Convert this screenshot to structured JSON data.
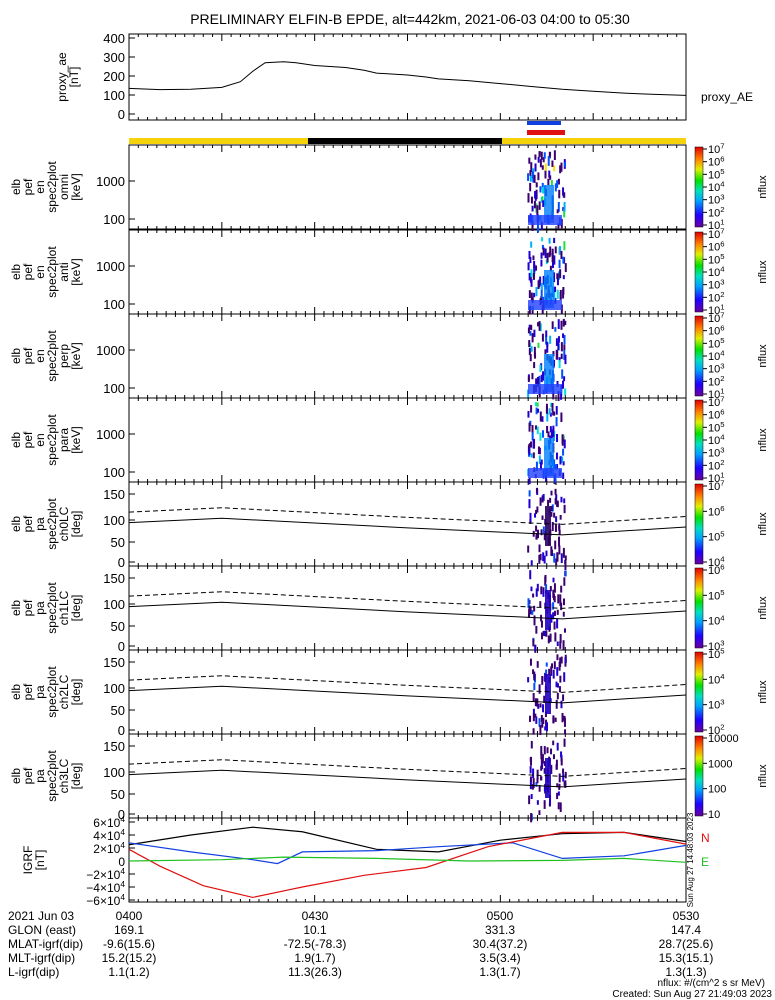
{
  "chart_data": {
    "type": "line",
    "title": "PRELIMINARY ELFIN-B EPDE, alt=442km, 2021-06-03 04:00 to 05:30",
    "panels": [
      {
        "id": "proxy_ae",
        "ylabel": [
          "proxy_ae",
          "[nT]"
        ],
        "yticks": [
          "400",
          "300",
          "200",
          "100",
          "0"
        ],
        "ylim": [
          0,
          400
        ],
        "series": [
          {
            "name": "proxy_AE",
            "x_min": [
              0,
              5,
              10,
              15,
              18,
              20,
              22,
              25,
              27,
              30,
              35,
              38,
              40,
              45,
              48,
              50,
              55,
              60,
              65,
              70,
              75,
              80,
              85,
              90
            ],
            "values": [
              135,
              128,
              130,
              140,
              170,
              225,
              270,
              275,
              270,
              255,
              245,
              230,
              215,
              205,
              195,
              185,
              175,
              160,
              145,
              130,
              120,
              110,
              103,
              98
            ]
          }
        ]
      },
      {
        "id": "omni",
        "ylabel": [
          "elb",
          "pef",
          "en",
          "spec2plot",
          "omni",
          "[keV]"
        ],
        "yticks": [
          "1000",
          "100"
        ],
        "cbar_ticks": [
          "10^7",
          "10^6",
          "10^5",
          "10^4",
          "10^3",
          "10^2",
          "10^1"
        ],
        "cbar_label": "nflux"
      },
      {
        "id": "anti",
        "ylabel": [
          "elb",
          "pef",
          "en",
          "spec2plot",
          "anti",
          "[keV]"
        ],
        "yticks": [
          "1000",
          "100"
        ],
        "cbar_ticks": [
          "10^7",
          "10^6",
          "10^5",
          "10^4",
          "10^3",
          "10^2",
          "10^1"
        ],
        "cbar_label": "nflux"
      },
      {
        "id": "perp",
        "ylabel": [
          "elb",
          "pef",
          "en",
          "spec2plot",
          "perp",
          "[keV]"
        ],
        "yticks": [
          "1000",
          "100"
        ],
        "cbar_ticks": [
          "10^7",
          "10^6",
          "10^5",
          "10^4",
          "10^3",
          "10^2",
          "10^1"
        ],
        "cbar_label": "nflux"
      },
      {
        "id": "para",
        "ylabel": [
          "elb",
          "pef",
          "en",
          "spec2plot",
          "para",
          "[keV]"
        ],
        "yticks": [
          "1000",
          "100"
        ],
        "cbar_ticks": [
          "10^7",
          "10^6",
          "10^5",
          "10^4",
          "10^3",
          "10^2",
          "10^1"
        ],
        "cbar_label": "nflux"
      },
      {
        "id": "ch0LC",
        "ylabel": [
          "elb",
          "pef",
          "pa",
          "spec2plot",
          "ch0LC",
          "[deg]"
        ],
        "yticks": [
          "150",
          "100",
          "50",
          "0"
        ],
        "cbar_ticks": [
          "10^7",
          "10^6",
          "10^5",
          "10^4"
        ],
        "cbar_label": "nflux"
      },
      {
        "id": "ch1LC",
        "ylabel": [
          "elb",
          "pef",
          "pa",
          "spec2plot",
          "ch1LC",
          "[deg]"
        ],
        "yticks": [
          "150",
          "100",
          "50",
          "0"
        ],
        "cbar_ticks": [
          "10^6",
          "10^5",
          "10^4",
          "10^3"
        ],
        "cbar_label": "nflux"
      },
      {
        "id": "ch2LC",
        "ylabel": [
          "elb",
          "pef",
          "pa",
          "spec2plot",
          "ch2LC",
          "[deg]"
        ],
        "yticks": [
          "150",
          "100",
          "50",
          "0"
        ],
        "cbar_ticks": [
          "10^5",
          "10^4",
          "10^3",
          "10^2"
        ],
        "cbar_label": "nflux"
      },
      {
        "id": "ch3LC",
        "ylabel": [
          "elb",
          "pef",
          "pa",
          "spec2plot",
          "ch3LC",
          "[deg]"
        ],
        "yticks": [
          "150",
          "100",
          "50",
          "0"
        ],
        "cbar_ticks": [
          "10000",
          "1000",
          "100",
          "10"
        ],
        "cbar_label": "nflux"
      },
      {
        "id": "IGRF",
        "ylabel": [
          "IGRF",
          "[nT]"
        ],
        "yticks": [
          "6×10^4",
          "4×10^4",
          "2×10^4",
          "0",
          "−2×10^4",
          "−4×10^4",
          "−6×10^4"
        ],
        "ylim": [
          -60000,
          60000
        ],
        "legend": [
          "N",
          "E"
        ],
        "side_note": "Sun Aug 27 14:48:03 2023"
      }
    ],
    "x_ticks": [
      "0400",
      "0430",
      "0500",
      "0530"
    ],
    "ephemeris": {
      "labels": [
        "2021 Jun 03",
        "GLON (east)",
        "MLAT-igrf(dip)",
        "MLT-igrf(dip)",
        "L-igrf(dip)"
      ],
      "rows": [
        [
          "0400",
          "0430",
          "0500",
          "0530"
        ],
        [
          "169.1",
          "10.1",
          "331.3",
          "147.4"
        ],
        [
          "-9.6(15.6)",
          "-72.5(-78.3)",
          "30.4(37.2)",
          "28.7(25.6)"
        ],
        [
          "15.2(15.2)",
          "1.9(1.7)",
          "3.5(3.4)",
          "15.3(15.1)"
        ],
        [
          "1.1(1.2)",
          "11.3(26.3)",
          "1.3(1.7)",
          "1.3(1.3)"
        ]
      ]
    },
    "footer": {
      "units": "nflux: #/(cm^2 s sr MeV)",
      "created": "Created: Sun Aug 27 21:49:03 2023"
    },
    "colors": {
      "red": "#e01010",
      "blue": "#1040e0",
      "green": "#20c020",
      "yellow": "#f5d20a",
      "black": "#000000"
    }
  }
}
